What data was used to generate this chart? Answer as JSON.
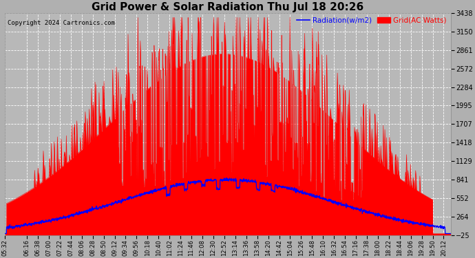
{
  "title": "Grid Power & Solar Radiation Thu Jul 18 20:26",
  "copyright": "Copyright 2024 Cartronics.com",
  "legend_radiation": "Radiation(w/m2)",
  "legend_grid": "Grid(AC Watts)",
  "ymin": -25.0,
  "ymax": 3438.2,
  "yticks": [
    3438.2,
    3149.6,
    2861.0,
    2572.4,
    2283.8,
    1995.2,
    1706.6,
    1418.0,
    1129.4,
    840.8,
    552.2,
    263.6,
    -25.0
  ],
  "bg_color": "#b0b0b0",
  "plot_bg_color": "#b8b8b8",
  "grid_color": "#ffffff",
  "red_color": "#ff0000",
  "blue_color": "#0000ff",
  "title_color": "#000000",
  "copyright_color": "#000000",
  "x_labels": [
    "05:32",
    "06:16",
    "06:38",
    "07:00",
    "07:22",
    "07:44",
    "08:06",
    "08:28",
    "08:50",
    "09:12",
    "09:34",
    "09:56",
    "10:18",
    "10:40",
    "11:02",
    "11:24",
    "11:46",
    "12:08",
    "12:30",
    "12:52",
    "13:14",
    "13:36",
    "13:58",
    "14:20",
    "14:42",
    "15:04",
    "15:26",
    "15:48",
    "16:10",
    "16:32",
    "16:54",
    "17:16",
    "17:38",
    "18:00",
    "18:22",
    "18:44",
    "19:06",
    "19:28",
    "19:50",
    "20:12"
  ]
}
